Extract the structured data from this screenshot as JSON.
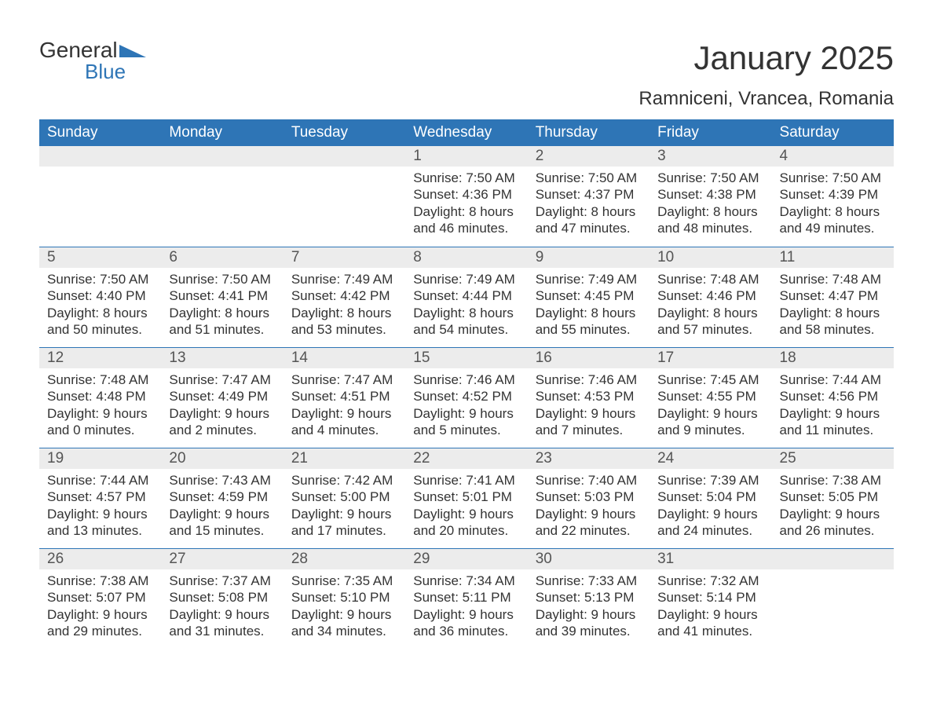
{
  "logo": {
    "word1": "General",
    "word2": "Blue"
  },
  "title": "January 2025",
  "location": "Ramniceni, Vrancea, Romania",
  "colors": {
    "header_bg": "#2e75b6",
    "header_fg": "#ffffff",
    "date_bar_bg": "#ececec",
    "date_fg": "#555555",
    "text": "#333333",
    "logo_blue": "#2e75b6",
    "divider": "#2e75b6"
  },
  "day_names": [
    "Sunday",
    "Monday",
    "Tuesday",
    "Wednesday",
    "Thursday",
    "Friday",
    "Saturday"
  ],
  "weeks": [
    [
      null,
      null,
      null,
      {
        "d": "1",
        "sr": "Sunrise: 7:50 AM",
        "ss": "Sunset: 4:36 PM",
        "dl1": "Daylight: 8 hours",
        "dl2": "and 46 minutes."
      },
      {
        "d": "2",
        "sr": "Sunrise: 7:50 AM",
        "ss": "Sunset: 4:37 PM",
        "dl1": "Daylight: 8 hours",
        "dl2": "and 47 minutes."
      },
      {
        "d": "3",
        "sr": "Sunrise: 7:50 AM",
        "ss": "Sunset: 4:38 PM",
        "dl1": "Daylight: 8 hours",
        "dl2": "and 48 minutes."
      },
      {
        "d": "4",
        "sr": "Sunrise: 7:50 AM",
        "ss": "Sunset: 4:39 PM",
        "dl1": "Daylight: 8 hours",
        "dl2": "and 49 minutes."
      }
    ],
    [
      {
        "d": "5",
        "sr": "Sunrise: 7:50 AM",
        "ss": "Sunset: 4:40 PM",
        "dl1": "Daylight: 8 hours",
        "dl2": "and 50 minutes."
      },
      {
        "d": "6",
        "sr": "Sunrise: 7:50 AM",
        "ss": "Sunset: 4:41 PM",
        "dl1": "Daylight: 8 hours",
        "dl2": "and 51 minutes."
      },
      {
        "d": "7",
        "sr": "Sunrise: 7:49 AM",
        "ss": "Sunset: 4:42 PM",
        "dl1": "Daylight: 8 hours",
        "dl2": "and 53 minutes."
      },
      {
        "d": "8",
        "sr": "Sunrise: 7:49 AM",
        "ss": "Sunset: 4:44 PM",
        "dl1": "Daylight: 8 hours",
        "dl2": "and 54 minutes."
      },
      {
        "d": "9",
        "sr": "Sunrise: 7:49 AM",
        "ss": "Sunset: 4:45 PM",
        "dl1": "Daylight: 8 hours",
        "dl2": "and 55 minutes."
      },
      {
        "d": "10",
        "sr": "Sunrise: 7:48 AM",
        "ss": "Sunset: 4:46 PM",
        "dl1": "Daylight: 8 hours",
        "dl2": "and 57 minutes."
      },
      {
        "d": "11",
        "sr": "Sunrise: 7:48 AM",
        "ss": "Sunset: 4:47 PM",
        "dl1": "Daylight: 8 hours",
        "dl2": "and 58 minutes."
      }
    ],
    [
      {
        "d": "12",
        "sr": "Sunrise: 7:48 AM",
        "ss": "Sunset: 4:48 PM",
        "dl1": "Daylight: 9 hours",
        "dl2": "and 0 minutes."
      },
      {
        "d": "13",
        "sr": "Sunrise: 7:47 AM",
        "ss": "Sunset: 4:49 PM",
        "dl1": "Daylight: 9 hours",
        "dl2": "and 2 minutes."
      },
      {
        "d": "14",
        "sr": "Sunrise: 7:47 AM",
        "ss": "Sunset: 4:51 PM",
        "dl1": "Daylight: 9 hours",
        "dl2": "and 4 minutes."
      },
      {
        "d": "15",
        "sr": "Sunrise: 7:46 AM",
        "ss": "Sunset: 4:52 PM",
        "dl1": "Daylight: 9 hours",
        "dl2": "and 5 minutes."
      },
      {
        "d": "16",
        "sr": "Sunrise: 7:46 AM",
        "ss": "Sunset: 4:53 PM",
        "dl1": "Daylight: 9 hours",
        "dl2": "and 7 minutes."
      },
      {
        "d": "17",
        "sr": "Sunrise: 7:45 AM",
        "ss": "Sunset: 4:55 PM",
        "dl1": "Daylight: 9 hours",
        "dl2": "and 9 minutes."
      },
      {
        "d": "18",
        "sr": "Sunrise: 7:44 AM",
        "ss": "Sunset: 4:56 PM",
        "dl1": "Daylight: 9 hours",
        "dl2": "and 11 minutes."
      }
    ],
    [
      {
        "d": "19",
        "sr": "Sunrise: 7:44 AM",
        "ss": "Sunset: 4:57 PM",
        "dl1": "Daylight: 9 hours",
        "dl2": "and 13 minutes."
      },
      {
        "d": "20",
        "sr": "Sunrise: 7:43 AM",
        "ss": "Sunset: 4:59 PM",
        "dl1": "Daylight: 9 hours",
        "dl2": "and 15 minutes."
      },
      {
        "d": "21",
        "sr": "Sunrise: 7:42 AM",
        "ss": "Sunset: 5:00 PM",
        "dl1": "Daylight: 9 hours",
        "dl2": "and 17 minutes."
      },
      {
        "d": "22",
        "sr": "Sunrise: 7:41 AM",
        "ss": "Sunset: 5:01 PM",
        "dl1": "Daylight: 9 hours",
        "dl2": "and 20 minutes."
      },
      {
        "d": "23",
        "sr": "Sunrise: 7:40 AM",
        "ss": "Sunset: 5:03 PM",
        "dl1": "Daylight: 9 hours",
        "dl2": "and 22 minutes."
      },
      {
        "d": "24",
        "sr": "Sunrise: 7:39 AM",
        "ss": "Sunset: 5:04 PM",
        "dl1": "Daylight: 9 hours",
        "dl2": "and 24 minutes."
      },
      {
        "d": "25",
        "sr": "Sunrise: 7:38 AM",
        "ss": "Sunset: 5:05 PM",
        "dl1": "Daylight: 9 hours",
        "dl2": "and 26 minutes."
      }
    ],
    [
      {
        "d": "26",
        "sr": "Sunrise: 7:38 AM",
        "ss": "Sunset: 5:07 PM",
        "dl1": "Daylight: 9 hours",
        "dl2": "and 29 minutes."
      },
      {
        "d": "27",
        "sr": "Sunrise: 7:37 AM",
        "ss": "Sunset: 5:08 PM",
        "dl1": "Daylight: 9 hours",
        "dl2": "and 31 minutes."
      },
      {
        "d": "28",
        "sr": "Sunrise: 7:35 AM",
        "ss": "Sunset: 5:10 PM",
        "dl1": "Daylight: 9 hours",
        "dl2": "and 34 minutes."
      },
      {
        "d": "29",
        "sr": "Sunrise: 7:34 AM",
        "ss": "Sunset: 5:11 PM",
        "dl1": "Daylight: 9 hours",
        "dl2": "and 36 minutes."
      },
      {
        "d": "30",
        "sr": "Sunrise: 7:33 AM",
        "ss": "Sunset: 5:13 PM",
        "dl1": "Daylight: 9 hours",
        "dl2": "and 39 minutes."
      },
      {
        "d": "31",
        "sr": "Sunrise: 7:32 AM",
        "ss": "Sunset: 5:14 PM",
        "dl1": "Daylight: 9 hours",
        "dl2": "and 41 minutes."
      },
      null
    ]
  ]
}
